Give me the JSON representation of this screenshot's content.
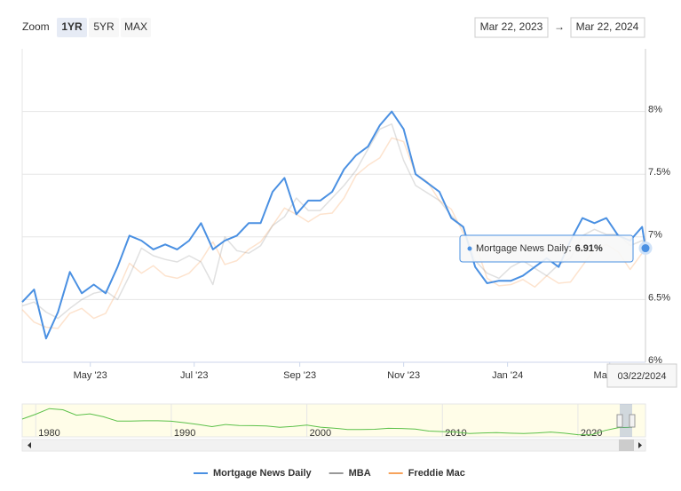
{
  "range_selector": {
    "zoom_label": "Zoom",
    "buttons": [
      "1YR",
      "5YR",
      "MAX"
    ],
    "active_button": 0,
    "from": "Mar 22, 2023",
    "arrow": "→",
    "to": "Mar 22, 2024"
  },
  "chart_data": {
    "type": "line",
    "x": [
      "2023-03-22",
      "2023-03-29",
      "2023-04-05",
      "2023-04-12",
      "2023-04-19",
      "2023-04-26",
      "2023-05-03",
      "2023-05-10",
      "2023-05-17",
      "2023-05-24",
      "2023-05-31",
      "2023-06-07",
      "2023-06-14",
      "2023-06-21",
      "2023-06-28",
      "2023-07-05",
      "2023-07-12",
      "2023-07-19",
      "2023-07-26",
      "2023-08-02",
      "2023-08-09",
      "2023-08-16",
      "2023-08-23",
      "2023-08-30",
      "2023-09-06",
      "2023-09-13",
      "2023-09-20",
      "2023-09-27",
      "2023-10-04",
      "2023-10-11",
      "2023-10-18",
      "2023-10-25",
      "2023-11-01",
      "2023-11-08",
      "2023-11-15",
      "2023-11-22",
      "2023-11-29",
      "2023-12-06",
      "2023-12-13",
      "2023-12-20",
      "2023-12-27",
      "2024-01-03",
      "2024-01-10",
      "2024-01-17",
      "2024-01-24",
      "2024-01-31",
      "2024-02-07",
      "2024-02-14",
      "2024-02-21",
      "2024-02-28",
      "2024-03-06",
      "2024-03-13",
      "2024-03-20",
      "2024-03-22"
    ],
    "series": [
      {
        "name": "Mortgage News Daily",
        "color": "#4a90e2",
        "values": [
          6.48,
          6.58,
          6.19,
          6.4,
          6.72,
          6.55,
          6.62,
          6.55,
          6.76,
          7.01,
          6.97,
          6.9,
          6.94,
          6.9,
          6.97,
          7.11,
          6.9,
          6.97,
          7.01,
          7.11,
          7.11,
          7.36,
          7.47,
          7.18,
          7.29,
          7.29,
          7.36,
          7.54,
          7.65,
          7.72,
          7.89,
          8.0,
          7.86,
          7.5,
          7.43,
          7.36,
          7.15,
          7.08,
          6.76,
          6.63,
          6.65,
          6.65,
          6.69,
          6.76,
          6.83,
          6.76,
          6.97,
          7.15,
          7.11,
          7.15,
          7.01,
          6.97,
          7.08,
          6.91
        ]
      },
      {
        "name": "MBA",
        "color": "#999999",
        "values": [
          6.45,
          6.48,
          6.4,
          6.35,
          6.43,
          6.5,
          6.55,
          6.57,
          6.5,
          6.69,
          6.91,
          6.85,
          6.82,
          6.8,
          6.85,
          6.8,
          6.62,
          7.0,
          6.89,
          6.87,
          6.93,
          7.09,
          7.16,
          7.31,
          7.21,
          7.21,
          7.31,
          7.41,
          7.53,
          7.7,
          7.86,
          7.9,
          7.61,
          7.41,
          7.35,
          7.29,
          7.17,
          7.07,
          6.81,
          6.71,
          6.67,
          6.76,
          6.81,
          6.75,
          6.69,
          6.78,
          6.83,
          7.01,
          7.06,
          7.02,
          7.02,
          6.93,
          6.97,
          6.93
        ]
      },
      {
        "name": "Freddie Mac",
        "color": "#f7a35c",
        "values": [
          6.42,
          6.32,
          6.28,
          6.27,
          6.39,
          6.43,
          6.35,
          6.39,
          6.57,
          6.79,
          6.71,
          6.77,
          6.69,
          6.67,
          6.71,
          6.81,
          6.96,
          6.78,
          6.81,
          6.9,
          6.96,
          7.09,
          7.23,
          7.18,
          7.12,
          7.18,
          7.19,
          7.31,
          7.49,
          7.57,
          7.63,
          7.79,
          7.76,
          7.5,
          7.44,
          7.29,
          7.22,
          7.03,
          6.95,
          6.67,
          6.61,
          6.62,
          6.66,
          6.6,
          6.69,
          6.63,
          6.64,
          6.77,
          6.9,
          6.94,
          6.88,
          6.74,
          6.87,
          6.87
        ]
      }
    ],
    "xlim": [
      "2023-03-22",
      "2024-03-22"
    ],
    "xticks": [
      {
        "value": "2023-05-01",
        "label": "May '23"
      },
      {
        "value": "2023-07-01",
        "label": "Jul '23"
      },
      {
        "value": "2023-09-01",
        "label": "Sep '23"
      },
      {
        "value": "2023-11-01",
        "label": "Nov '23"
      },
      {
        "value": "2024-01-01",
        "label": "Jan '24"
      },
      {
        "value": "2024-03-01",
        "label": "Mar '24"
      }
    ],
    "ylim": [
      6,
      8.5
    ],
    "yticks": [
      {
        "value": 6,
        "label": "6%"
      },
      {
        "value": 6.5,
        "label": "6.5%"
      },
      {
        "value": 7,
        "label": "7%"
      },
      {
        "value": 7.5,
        "label": "7.5%"
      },
      {
        "value": 8,
        "label": "8%"
      }
    ],
    "grid": true,
    "legend": "bottom",
    "tooltip": {
      "series_label": "Mortgage News Daily:",
      "value_label": "6.91%",
      "date": "03/22/2024"
    }
  },
  "navigator": {
    "color": "#5cc14a",
    "x": [
      1979,
      1980,
      1981,
      1982,
      1983,
      1984,
      1985,
      1986,
      1987,
      1988,
      1989,
      1990,
      1991,
      1992,
      1993,
      1994,
      1995,
      1996,
      1997,
      1998,
      1999,
      2000,
      2001,
      2002,
      2003,
      2004,
      2005,
      2006,
      2007,
      2008,
      2009,
      2010,
      2011,
      2012,
      2013,
      2014,
      2015,
      2016,
      2017,
      2018,
      2019,
      2020,
      2021,
      2022,
      2023,
      2024
    ],
    "values": [
      11.2,
      13.7,
      16.6,
      16.0,
      13.2,
      13.9,
      12.4,
      10.2,
      10.2,
      10.3,
      10.3,
      10.1,
      9.3,
      8.4,
      7.3,
      8.4,
      7.9,
      7.8,
      7.6,
      6.9,
      7.4,
      8.1,
      7.0,
      6.5,
      5.8,
      5.8,
      5.9,
      6.4,
      6.3,
      6.0,
      5.0,
      4.7,
      4.5,
      3.7,
      4.0,
      4.2,
      3.9,
      3.7,
      4.0,
      4.5,
      3.9,
      3.1,
      3.0,
      5.3,
      6.8,
      6.9
    ],
    "xlim": [
      1979,
      2024
    ],
    "ylim": [
      2,
      19
    ],
    "xticks": [
      1980,
      1990,
      2000,
      2010,
      2020
    ]
  }
}
